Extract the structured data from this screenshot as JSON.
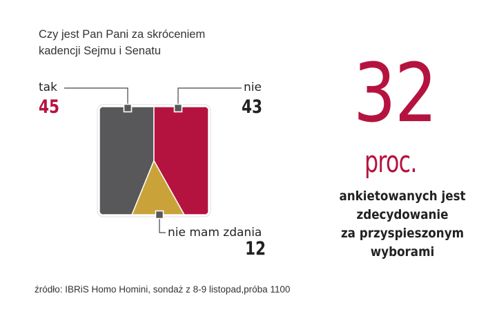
{
  "chart_data": {
    "type": "area",
    "title": [
      "Czy jest Pan Pani za skróceniem",
      "kadencji Sejmu i Senatu"
    ],
    "categories": [
      "tak",
      "nie",
      "nie mam zdania"
    ],
    "values": [
      45,
      43,
      12
    ],
    "colors": [
      "#58585a",
      "#b5133f",
      "#c9a33a"
    ],
    "value_colors": [
      "#b5133f",
      "#222222",
      "#222222"
    ]
  },
  "highlight": {
    "number": "32",
    "unit": "proc.",
    "lines": [
      "ankietowanych jest",
      "zdecydowanie",
      "za przyspieszonym",
      "wyborami"
    ],
    "color": "#b5133f"
  },
  "source": "źródło: IBRiS Homo Homini, sondaż z 8-9 listopad,próba 1100"
}
